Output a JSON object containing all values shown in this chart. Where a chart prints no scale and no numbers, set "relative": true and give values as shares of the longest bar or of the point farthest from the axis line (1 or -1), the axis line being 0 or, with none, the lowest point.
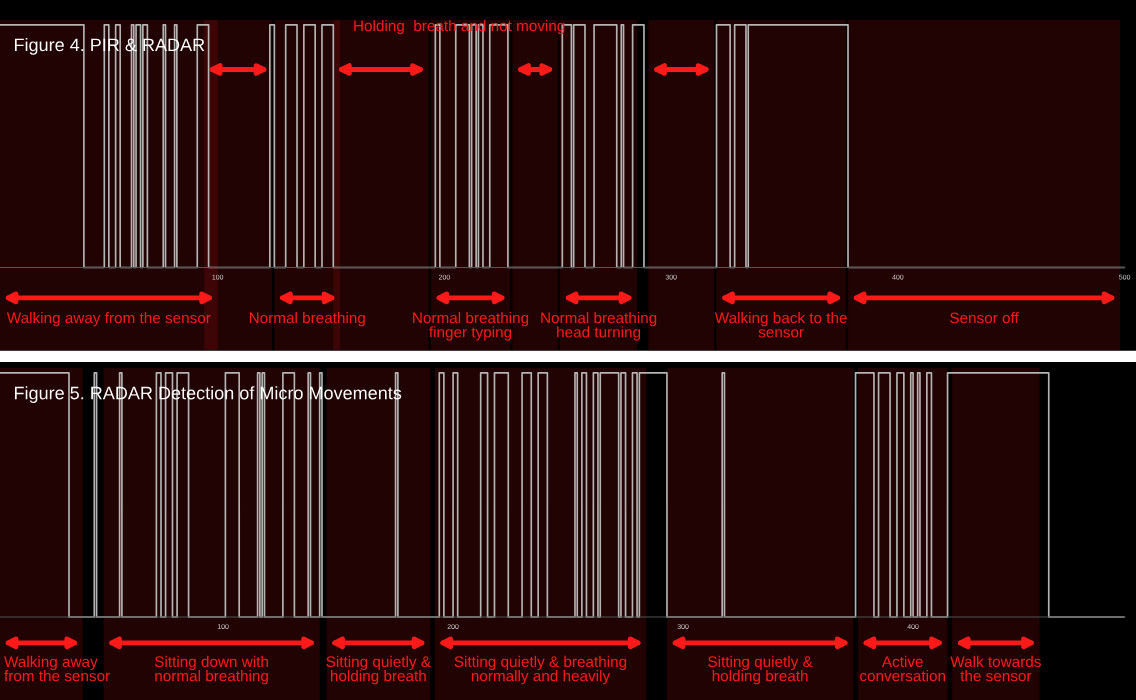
{
  "chart_data": [
    {
      "type": "step",
      "title": "Figure 4. PIR & RADAR",
      "relative": true,
      "xlim": [
        4,
        500
      ],
      "xticks": [
        100,
        200,
        300,
        400,
        500
      ],
      "grid": false,
      "annotations": [
        "Holding  breath and not moving"
      ],
      "series": [
        {
          "color": "#b4b4b4",
          "x": [
            4,
            41,
            50,
            52,
            55,
            57,
            62,
            63,
            64,
            66,
            67,
            69,
            76,
            77,
            81,
            82,
            91,
            96,
            123,
            125,
            130,
            135,
            138,
            143,
            146,
            151,
            196,
            198,
            205,
            211,
            212,
            214,
            215,
            217,
            220,
            228,
            252,
            256,
            257,
            262,
            266,
            276,
            278,
            279,
            283,
            288,
            320,
            326,
            328,
            333,
            334,
            378,
            500
          ],
          "values": [
            1,
            0,
            1,
            0,
            1,
            0,
            1,
            0,
            1,
            0,
            1,
            0,
            1,
            0,
            1,
            0,
            1,
            0,
            1,
            0,
            1,
            0,
            1,
            0,
            1,
            0,
            1,
            0,
            1,
            0,
            1,
            0,
            1,
            0,
            1,
            0,
            1,
            0,
            1,
            0,
            1,
            0,
            1,
            0,
            1,
            0,
            1,
            0,
            1,
            0,
            1,
            0,
            0
          ]
        }
      ],
      "bands": [
        {
          "axis": "x",
          "from": 94,
          "to": 124,
          "label": null,
          "color": "#ff1a1a"
        },
        {
          "axis": "x",
          "from": 151,
          "to": 193,
          "label": null,
          "color": "#ff1a1a"
        },
        {
          "axis": "x",
          "from": 230,
          "to": 250,
          "label": null,
          "color": "#ff1a1a"
        },
        {
          "axis": "x",
          "from": 290,
          "to": 319,
          "label": null,
          "color": "#ff1a1a"
        },
        {
          "axis": "x",
          "from": 4,
          "to": 100,
          "label": "Walking away from the sensor",
          "color": "#ff1a1a"
        },
        {
          "axis": "x",
          "from": 125,
          "to": 154,
          "label": "Normal breathing",
          "color": "#ff1a1a"
        },
        {
          "axis": "x",
          "from": 194,
          "to": 229,
          "label": "Normal breathing\nfinger typing",
          "color": "#ff1a1a"
        },
        {
          "axis": "x",
          "from": 251,
          "to": 285,
          "label": "Normal breathing\nhead turning",
          "color": "#ff1a1a"
        },
        {
          "axis": "x",
          "from": 320,
          "to": 377,
          "label": "Walking back to the\nsensor",
          "color": "#ff1a1a"
        },
        {
          "axis": "x",
          "from": 378,
          "to": 498,
          "label": "Sensor off",
          "color": "#ff1a1a"
        }
      ]
    },
    {
      "type": "step",
      "title": "Figure 5. RADAR Detection of Micro Movements",
      "relative": true,
      "xlim": [
        3,
        492
      ],
      "xticks": [
        100,
        200,
        300,
        400
      ],
      "grid": false,
      "series": [
        {
          "color": "#b4b4b4",
          "x": [
            3,
            33,
            44,
            45,
            55,
            56,
            71,
            73,
            75,
            78,
            80,
            85,
            101,
            107,
            115,
            116,
            117,
            118,
            126,
            131,
            137,
            138,
            142,
            143,
            175,
            176,
            194,
            196,
            200,
            202,
            212,
            215,
            218,
            224,
            230,
            234,
            237,
            241,
            253,
            254,
            256,
            258,
            261,
            263,
            264,
            272,
            273,
            275,
            278,
            280,
            281,
            293,
            317,
            318,
            375,
            383,
            385,
            390,
            393,
            396,
            399,
            400,
            402,
            403,
            406,
            408,
            415,
            459,
            492
          ],
          "values": [
            1,
            0,
            1,
            0,
            1,
            0,
            1,
            0,
            1,
            0,
            1,
            0,
            1,
            0,
            1,
            0,
            1,
            0,
            1,
            0,
            1,
            0,
            1,
            0,
            1,
            0,
            1,
            0,
            1,
            0,
            1,
            0,
            1,
            0,
            1,
            0,
            1,
            0,
            1,
            0,
            1,
            0,
            1,
            0,
            1,
            0,
            1,
            0,
            1,
            0,
            1,
            0,
            1,
            0,
            1,
            0,
            1,
            0,
            1,
            0,
            1,
            0,
            1,
            0,
            1,
            0,
            1,
            0,
            0
          ]
        }
      ],
      "bands": [
        {
          "axis": "x",
          "from": 3,
          "to": 39,
          "label": "Walking away\nfrom the sensor",
          "color": "#ff1a1a"
        },
        {
          "axis": "x",
          "from": 48,
          "to": 142,
          "label": "Sitting down with\nnormal breathing",
          "color": "#ff1a1a"
        },
        {
          "axis": "x",
          "from": 145,
          "to": 190,
          "label": "Sitting quietly &\nholding breath",
          "color": "#ff1a1a"
        },
        {
          "axis": "x",
          "from": 192,
          "to": 284,
          "label": "Sitting quietly & breathing\nnormally and heavily",
          "color": "#ff1a1a"
        },
        {
          "axis": "x",
          "from": 293,
          "to": 374,
          "label": "Sitting quietly &\nholding breath",
          "color": "#ff1a1a"
        },
        {
          "axis": "x",
          "from": 376,
          "to": 415,
          "label": "Active\nconversation",
          "color": "#ff1a1a"
        },
        {
          "axis": "x",
          "from": 417,
          "to": 455,
          "label": "Walk towards\nthe sensor",
          "color": "#ff1a1a"
        }
      ]
    }
  ]
}
